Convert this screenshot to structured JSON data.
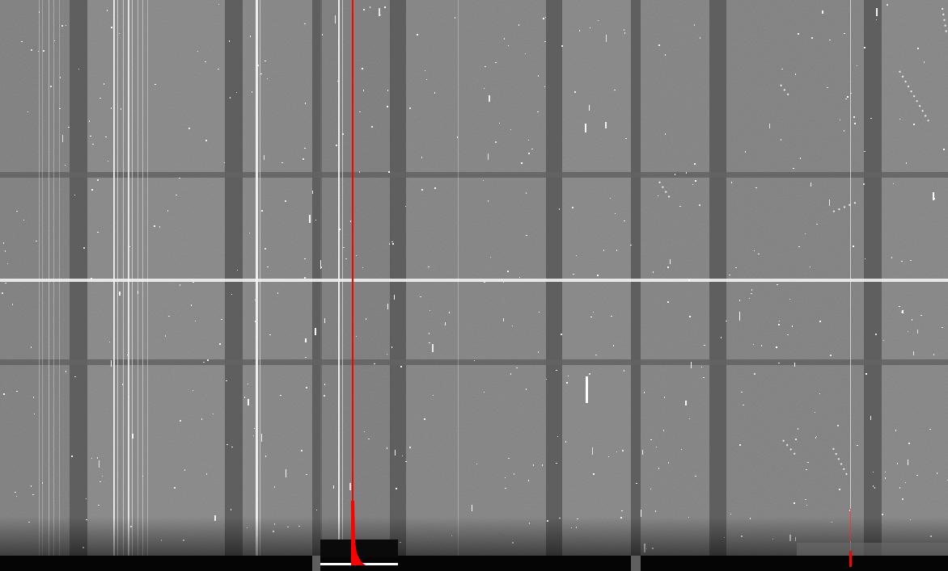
{
  "image": {
    "kind": "astronomical detector frame (spectral image)",
    "colors": {
      "sky_background": "#828282",
      "gap_dark": "#5f5f5f",
      "bright_line": "#f2f2f2",
      "bottom_strip": "#050505",
      "marker_red": "#ff0000"
    },
    "red_marker_icon": "vertical-cursor-line-with-spike"
  }
}
